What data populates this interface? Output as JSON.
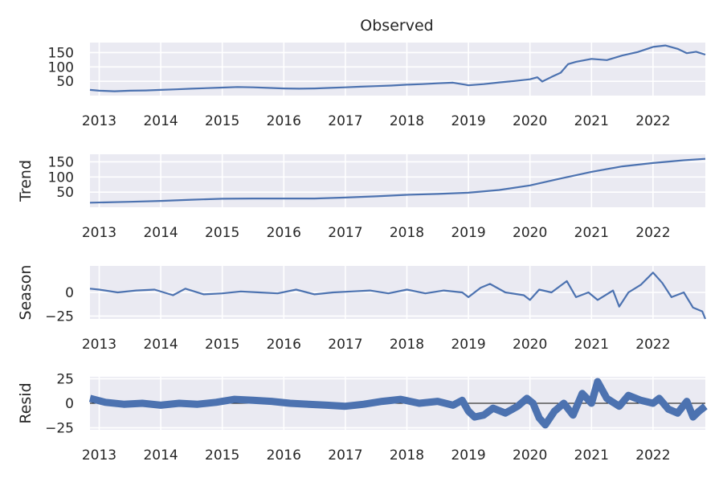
{
  "chart_data": [
    {
      "type": "line",
      "panel": "observed",
      "title": "Observed",
      "ylabel": "",
      "xlim": [
        2012.85,
        2022.85
      ],
      "ylim": [
        0,
        185
      ],
      "xticks": [
        2013,
        2014,
        2015,
        2016,
        2017,
        2018,
        2019,
        2020,
        2021,
        2022
      ],
      "xtick_labels": [
        "2013",
        "2014",
        "2015",
        "2016",
        "2017",
        "2018",
        "2019",
        "2020",
        "2021",
        "2022"
      ],
      "yticks": [
        50,
        100,
        150
      ],
      "ytick_labels": [
        "50",
        "100",
        "150"
      ],
      "grid": true,
      "color": "#4c72b0",
      "x": [
        2012.85,
        2013.0,
        2013.25,
        2013.5,
        2013.75,
        2014.0,
        2014.25,
        2014.5,
        2014.75,
        2015.0,
        2015.25,
        2015.5,
        2015.75,
        2016.0,
        2016.25,
        2016.5,
        2016.75,
        2017.0,
        2017.25,
        2017.5,
        2017.75,
        2018.0,
        2018.25,
        2018.5,
        2018.75,
        2018.95,
        2019.0,
        2019.25,
        2019.5,
        2019.75,
        2020.0,
        2020.12,
        2020.2,
        2020.35,
        2020.5,
        2020.62,
        2020.75,
        2021.0,
        2021.25,
        2021.5,
        2021.75,
        2022.0,
        2022.2,
        2022.4,
        2022.55,
        2022.7,
        2022.85
      ],
      "y": [
        20,
        17,
        15,
        17,
        18,
        20,
        22,
        24,
        26,
        28,
        30,
        29,
        27,
        25,
        24,
        25,
        27,
        29,
        31,
        33,
        35,
        38,
        40,
        43,
        45,
        38,
        36,
        40,
        46,
        51,
        57,
        64,
        49,
        65,
        80,
        110,
        118,
        128,
        124,
        140,
        152,
        170,
        175,
        163,
        148,
        153,
        143
      ]
    },
    {
      "type": "line",
      "panel": "trend",
      "title": "",
      "ylabel": "Trend",
      "xlim": [
        2012.85,
        2022.85
      ],
      "ylim": [
        0,
        175
      ],
      "xticks": [
        2013,
        2014,
        2015,
        2016,
        2017,
        2018,
        2019,
        2020,
        2021,
        2022
      ],
      "xtick_labels": [
        "2013",
        "2014",
        "2015",
        "2016",
        "2017",
        "2018",
        "2019",
        "2020",
        "2021",
        "2022"
      ],
      "yticks": [
        50,
        100,
        150
      ],
      "ytick_labels": [
        "50",
        "100",
        "150"
      ],
      "grid": true,
      "color": "#4c72b0",
      "x": [
        2012.85,
        2013.5,
        2014.0,
        2014.5,
        2015.0,
        2015.5,
        2016.0,
        2016.5,
        2017.0,
        2017.5,
        2018.0,
        2018.5,
        2019.0,
        2019.5,
        2020.0,
        2020.5,
        2021.0,
        2021.5,
        2022.0,
        2022.5,
        2022.85
      ],
      "y": [
        15,
        18,
        21,
        25,
        28,
        29,
        29,
        29,
        32,
        36,
        41,
        44,
        48,
        57,
        72,
        95,
        117,
        135,
        146,
        155,
        160
      ]
    },
    {
      "type": "line",
      "panel": "season",
      "title": "",
      "ylabel": "Season",
      "xlim": [
        2012.85,
        2022.85
      ],
      "ylim": [
        -28,
        28
      ],
      "xticks": [
        2013,
        2014,
        2015,
        2016,
        2017,
        2018,
        2019,
        2020,
        2021,
        2022
      ],
      "xtick_labels": [
        "2013",
        "2014",
        "2015",
        "2016",
        "2017",
        "2018",
        "2019",
        "2020",
        "2021",
        "2022"
      ],
      "yticks": [
        -25,
        0
      ],
      "ytick_labels": [
        "−25",
        "0"
      ],
      "grid": true,
      "color": "#4c72b0",
      "x": [
        2012.85,
        2013.0,
        2013.3,
        2013.6,
        2013.9,
        2014.2,
        2014.4,
        2014.7,
        2015.0,
        2015.3,
        2015.6,
        2015.9,
        2016.2,
        2016.5,
        2016.8,
        2017.1,
        2017.4,
        2017.7,
        2018.0,
        2018.3,
        2018.6,
        2018.9,
        2019.0,
        2019.2,
        2019.35,
        2019.6,
        2019.9,
        2020.0,
        2020.15,
        2020.35,
        2020.6,
        2020.75,
        2020.95,
        2021.1,
        2021.35,
        2021.45,
        2021.6,
        2021.8,
        2022.0,
        2022.15,
        2022.3,
        2022.5,
        2022.65,
        2022.8,
        2022.85
      ],
      "y": [
        4,
        3,
        0,
        2,
        3,
        -3,
        4,
        -2,
        -1,
        1,
        0,
        -1,
        3,
        -2,
        0,
        1,
        2,
        -1,
        3,
        -1,
        2,
        0,
        -5,
        5,
        9,
        0,
        -3,
        -8,
        3,
        0,
        12,
        -5,
        0,
        -8,
        2,
        -15,
        0,
        8,
        21,
        10,
        -5,
        0,
        -16,
        -20,
        -28
      ]
    },
    {
      "type": "line",
      "panel": "resid",
      "title": "",
      "ylabel": "Resid",
      "xlim": [
        2012.85,
        2022.85
      ],
      "ylim": [
        -27,
        27
      ],
      "xticks": [
        2013,
        2014,
        2015,
        2016,
        2017,
        2018,
        2019,
        2020,
        2021,
        2022
      ],
      "xtick_labels": [
        "2013",
        "2014",
        "2015",
        "2016",
        "2017",
        "2018",
        "2019",
        "2020",
        "2021",
        "2022"
      ],
      "yticks": [
        -25,
        0,
        25
      ],
      "ytick_labels": [
        "−25",
        "0",
        "25"
      ],
      "grid": true,
      "zero_line": true,
      "color": "#4c72b0",
      "x": [
        2012.85,
        2013.1,
        2013.4,
        2013.7,
        2014.0,
        2014.3,
        2014.6,
        2014.9,
        2015.2,
        2015.5,
        2015.8,
        2016.1,
        2016.4,
        2016.7,
        2017.0,
        2017.3,
        2017.6,
        2017.9,
        2018.2,
        2018.5,
        2018.75,
        2018.9,
        2019.0,
        2019.1,
        2019.25,
        2019.4,
        2019.6,
        2019.8,
        2019.95,
        2020.05,
        2020.15,
        2020.25,
        2020.4,
        2020.55,
        2020.7,
        2020.85,
        2021.0,
        2021.1,
        2021.25,
        2021.45,
        2021.6,
        2021.8,
        2022.0,
        2022.1,
        2022.25,
        2022.4,
        2022.55,
        2022.65,
        2022.75,
        2022.85
      ],
      "y": [
        5,
        1,
        -1,
        0,
        -2,
        0,
        -1,
        1,
        4,
        3,
        2,
        0,
        -1,
        -2,
        -3,
        -1,
        2,
        4,
        0,
        2,
        -2,
        3,
        -8,
        -14,
        -12,
        -5,
        -10,
        -3,
        5,
        0,
        -15,
        -22,
        -8,
        0,
        -12,
        10,
        0,
        22,
        5,
        -3,
        8,
        3,
        0,
        5,
        -6,
        -10,
        2,
        -14,
        -8,
        -3
      ]
    }
  ]
}
